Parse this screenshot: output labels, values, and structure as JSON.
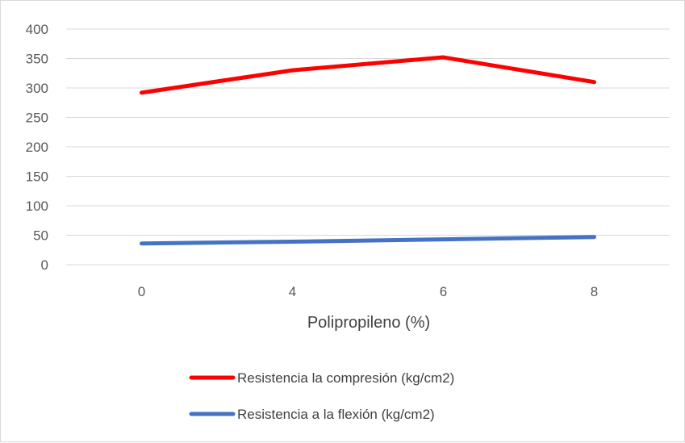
{
  "chart_data": {
    "type": "line",
    "title": "",
    "xlabel": "Polipropileno (%)",
    "ylabel": "",
    "categories": [
      "0",
      "4",
      "6",
      "8"
    ],
    "ylim": [
      0,
      400
    ],
    "yticks": [
      0,
      50,
      100,
      150,
      200,
      250,
      300,
      350,
      400
    ],
    "grid": true,
    "legend": "bottom",
    "series": [
      {
        "name": "Resistencia la compresión (kg/cm2)",
        "values": [
          292,
          330,
          352,
          310
        ],
        "color": "#ff0000"
      },
      {
        "name": "Resistencia a la flexión (kg/cm2)",
        "values": [
          36,
          39,
          43,
          47
        ],
        "color": "#4472c4"
      }
    ]
  }
}
